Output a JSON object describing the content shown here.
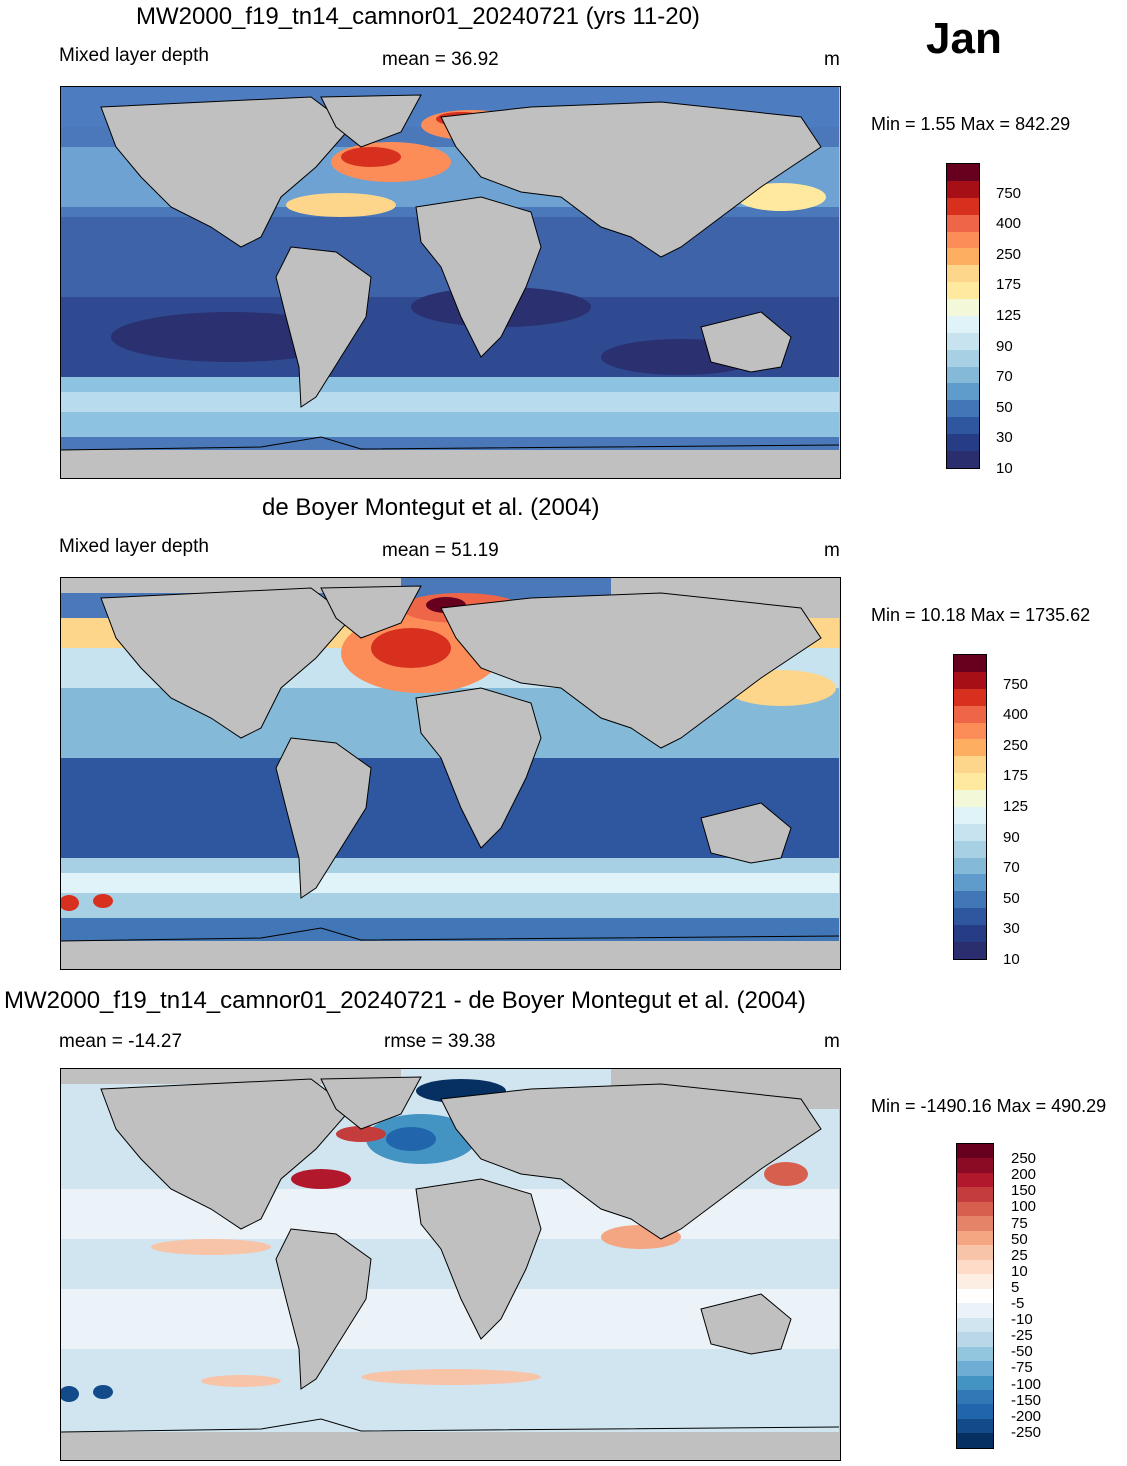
{
  "month": "Jan",
  "panels": [
    {
      "id": "model",
      "title": "MW2000_f19_tn14_camnor01_20240721 (yrs 11-20)",
      "left_label": "Mixed layer depth",
      "center_label": "mean =  36.92",
      "right_label": "m",
      "minmax": "Min =    1.55 Max = 842.29"
    },
    {
      "id": "obs",
      "title": "de Boyer Montegut et al. (2004)",
      "left_label": "Mixed layer depth",
      "center_label": "mean =  51.19",
      "right_label": "m",
      "minmax": "Min =  10.18 Max = 1735.62"
    },
    {
      "id": "diff",
      "title": "MW2000_f19_tn14_camnor01_20240721 - de Boyer Montegut et al. (2004)",
      "left_label": "mean = -14.27",
      "center_label": "rmse =  39.38",
      "right_label": "m",
      "minmax": "Min = -1490.16 Max = 490.29"
    }
  ],
  "colorbars": {
    "mld": {
      "labels": [
        "750",
        "400",
        "250",
        "175",
        "125",
        "90",
        "70",
        "50",
        "30",
        "10"
      ],
      "colors": [
        "#67001f",
        "#a50f15",
        "#d7301f",
        "#ef6548",
        "#fc8d59",
        "#fdae61",
        "#fdd58b",
        "#fee99e",
        "#f3f8d8",
        "#e0f3f8",
        "#c6e3ef",
        "#a7d0e4",
        "#85b9d8",
        "#5f9ccb",
        "#4177b6",
        "#2f57a0",
        "#263d86",
        "#2a2d6e"
      ]
    },
    "diff": {
      "labels": [
        "250",
        "200",
        "150",
        "100",
        "75",
        "50",
        "25",
        "10",
        "5",
        "-5",
        "-10",
        "-25",
        "-50",
        "-75",
        "-100",
        "-150",
        "-200",
        "-250"
      ],
      "colors": [
        "#67001f",
        "#8b0a24",
        "#b2182b",
        "#c43c3c",
        "#d6604d",
        "#e58368",
        "#f4a582",
        "#f8c4a8",
        "#fddbc7",
        "#fdeee4",
        "#ffffff",
        "#ebf2f8",
        "#d1e5f0",
        "#b9d7e9",
        "#92c5de",
        "#6fadd4",
        "#4393c3",
        "#3179b6",
        "#2166ac",
        "#134a8a",
        "#053061"
      ]
    }
  }
}
